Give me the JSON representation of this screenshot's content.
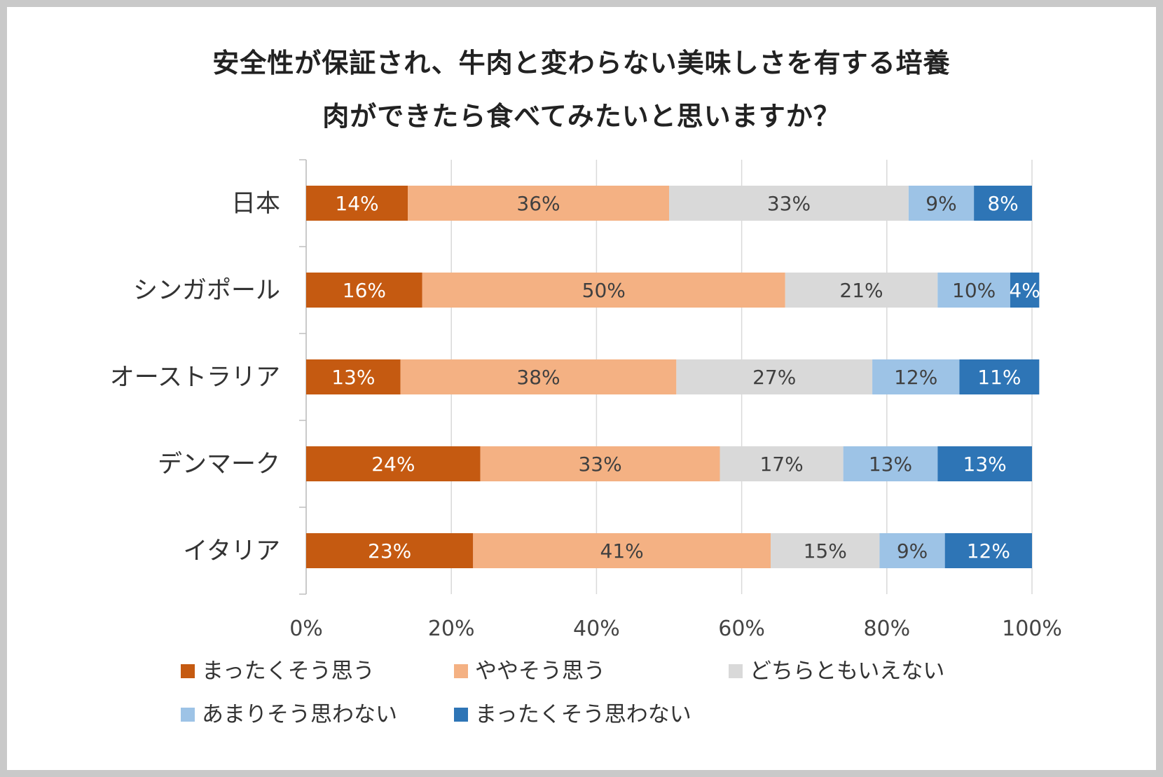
{
  "chart_data": {
    "type": "bar",
    "orientation": "horizontal",
    "stacked": "100%",
    "title": [
      "安全性が保証され、牛肉と変わらない美味しさを有する培養",
      "肉ができたら食べてみたいと思いますか？"
    ],
    "categories": [
      "日本",
      "シンガポール",
      "オーストラリア",
      "デンマーク",
      "イタリア"
    ],
    "series": [
      {
        "name": "まったくそう思う",
        "color": "#c55a11",
        "label_color": "#ffffff",
        "values": [
          14,
          16,
          13,
          24,
          23
        ]
      },
      {
        "name": "ややそう思う",
        "color": "#f4b183",
        "label_color": "#404040",
        "values": [
          36,
          50,
          38,
          33,
          41
        ]
      },
      {
        "name": "どちらともいえない",
        "color": "#d9d9d9",
        "label_color": "#404040",
        "values": [
          33,
          21,
          27,
          17,
          15
        ]
      },
      {
        "name": "あまりそう思わない",
        "color": "#9dc3e6",
        "label_color": "#404040",
        "values": [
          9,
          10,
          12,
          13,
          9
        ]
      },
      {
        "name": "まったくそう思わない",
        "color": "#2e75b6",
        "label_color": "#ffffff",
        "values": [
          8,
          4,
          11,
          13,
          12
        ]
      }
    ],
    "value_suffix": "%",
    "xlim": [
      0,
      100
    ],
    "xticks": [
      "0%",
      "20%",
      "40%",
      "60%",
      "80%",
      "100%"
    ],
    "grid": true,
    "legend_position": "bottom"
  }
}
